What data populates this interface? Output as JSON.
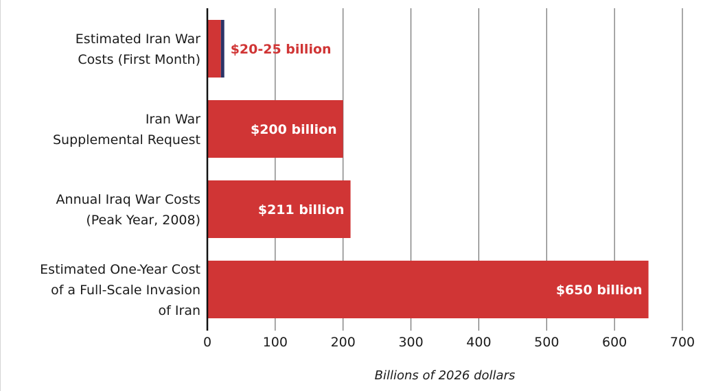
{
  "chart_data": {
    "type": "bar",
    "orientation": "horizontal",
    "title": "",
    "xlabel": "Billions of 2026 dollars",
    "ylabel": "",
    "xlim": [
      0,
      700
    ],
    "xticks": [
      0,
      100,
      200,
      300,
      400,
      500,
      600,
      700
    ],
    "grid": true,
    "categories": [
      [
        "Estimated Iran War",
        "Costs (First Month)"
      ],
      [
        "Iran War",
        "Supplemental Request"
      ],
      [
        "Annual Iraq War Costs",
        "(Peak Year, 2008)"
      ],
      [
        "Estimated One-Year Cost",
        "of a Full-Scale Invasion",
        "of Iran"
      ]
    ],
    "bars": [
      {
        "segments": [
          {
            "from": 0,
            "to": 20,
            "color": "#d03535"
          },
          {
            "from": 20,
            "to": 25,
            "color": "#2b3467"
          }
        ],
        "label": "$20-25 billion",
        "label_position": "outside",
        "label_color": "#d03535"
      },
      {
        "segments": [
          {
            "from": 0,
            "to": 200,
            "color": "#d03535"
          }
        ],
        "label": "$200 billion",
        "label_position": "inside",
        "label_color": "#ffffff"
      },
      {
        "segments": [
          {
            "from": 0,
            "to": 211,
            "color": "#d03535"
          }
        ],
        "label": "$211 billion",
        "label_position": "inside",
        "label_color": "#ffffff"
      },
      {
        "segments": [
          {
            "from": 0,
            "to": 650,
            "color": "#d03535"
          }
        ],
        "label": "$650 billion",
        "label_position": "inside",
        "label_color": "#ffffff"
      }
    ],
    "values": [
      25,
      200,
      211,
      650
    ],
    "colors": {
      "bar": "#d03535",
      "range": "#2b3467",
      "grid": "#6e6e6e",
      "axis": "#111111",
      "text": "#1b1b1b"
    }
  }
}
